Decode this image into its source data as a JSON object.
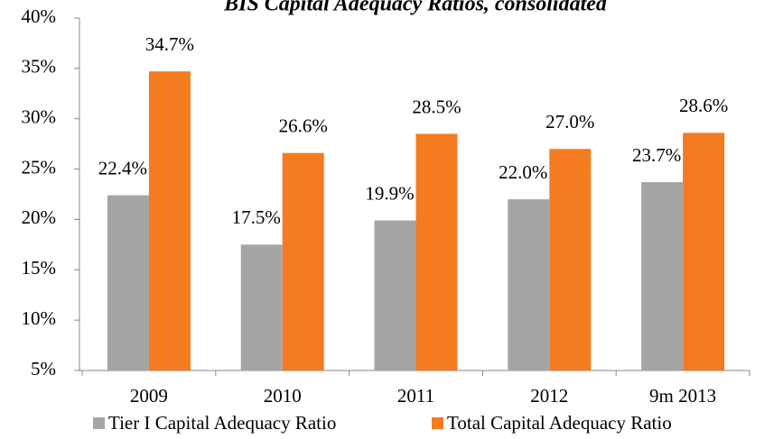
{
  "chart_data": {
    "type": "bar",
    "title": "BIS Capital Adequacy Ratios, consolidated",
    "categories": [
      "2009",
      "2010",
      "2011",
      "2012",
      "9m 2013"
    ],
    "series": [
      {
        "name": "Tier I Capital Adequacy Ratio",
        "color": "#a5a5a5",
        "values": [
          22.4,
          17.5,
          19.9,
          22.0,
          23.7
        ],
        "value_labels": [
          "22.4%",
          "17.5%",
          "19.9%",
          "22.0%",
          "23.7%"
        ]
      },
      {
        "name": "Total Capital Adequacy Ratio",
        "color": "#f47b20",
        "values": [
          34.7,
          26.6,
          28.5,
          27.0,
          28.6
        ],
        "value_labels": [
          "34.7%",
          "26.6%",
          "28.5%",
          "27.0%",
          "28.6%"
        ]
      }
    ],
    "ylim": [
      5,
      40
    ],
    "yticks": [
      {
        "value": 5,
        "label": "5%"
      },
      {
        "value": 10,
        "label": "10%"
      },
      {
        "value": 15,
        "label": "15%"
      },
      {
        "value": 20,
        "label": "20%"
      },
      {
        "value": 25,
        "label": "25%"
      },
      {
        "value": 30,
        "label": "30%"
      },
      {
        "value": 35,
        "label": "35%"
      },
      {
        "value": 40,
        "label": "40%"
      }
    ],
    "grid": false,
    "legend": "bottom"
  }
}
